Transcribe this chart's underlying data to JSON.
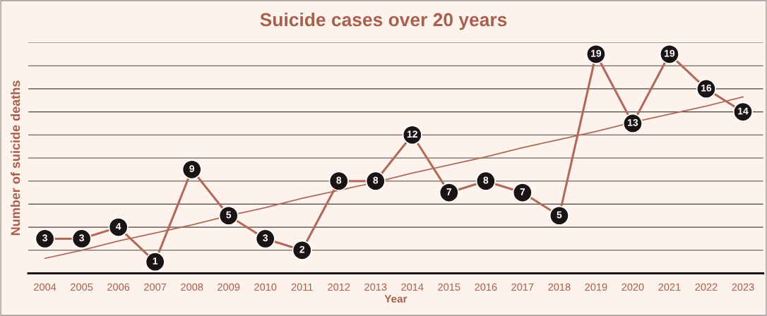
{
  "chart_data": {
    "type": "line",
    "title": "Suicide cases over 20 years",
    "xlabel": "Year",
    "ylabel": "Number of suicide deaths",
    "categories": [
      "2004",
      "2005",
      "2006",
      "2007",
      "2008",
      "2009",
      "2010",
      "2011",
      "2012",
      "2013",
      "2014",
      "2015",
      "2016",
      "2017",
      "2018",
      "2019",
      "2020",
      "2021",
      "2022",
      "2023"
    ],
    "series": [
      {
        "color": "#b06a58",
        "values": [
          3,
          3,
          4,
          1,
          9,
          5,
          3,
          2,
          8,
          8,
          12,
          7,
          8,
          7,
          5,
          19,
          13,
          19,
          16,
          14
        ],
        "marker": "circle",
        "data_labels": true
      },
      {
        "type": "line",
        "color": "#b06a58",
        "values": [
          1.3,
          2.0,
          2.8,
          3.5,
          4.2,
          5.0,
          5.7,
          6.5,
          7.2,
          7.9,
          8.7,
          9.4,
          10.1,
          10.9,
          11.6,
          12.3,
          13.1,
          13.8,
          14.5,
          15.3
        ],
        "marker": "none"
      }
    ],
    "ylim": [
      0,
      20
    ],
    "yticks": [
      {
        "value": 0,
        "label": null
      },
      {
        "value": 2,
        "label": null
      },
      {
        "value": 4,
        "label": null
      },
      {
        "value": 6,
        "label": null
      },
      {
        "value": 8,
        "label": null
      },
      {
        "value": 10,
        "label": null
      },
      {
        "value": 12,
        "label": null
      },
      {
        "value": 14,
        "label": null
      },
      {
        "value": 16,
        "label": null
      },
      {
        "value": 18,
        "label": null
      },
      {
        "value": 20,
        "label": null
      }
    ],
    "tick_labels": "x",
    "grid": "y",
    "legend": false
  }
}
